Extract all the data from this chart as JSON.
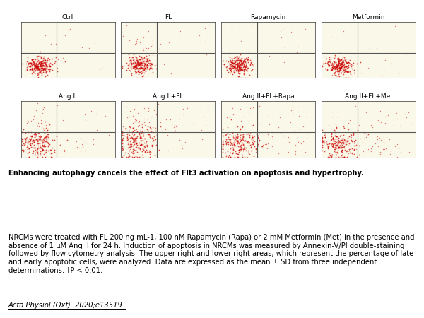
{
  "title_bold": "Enhancing autophagy cancels the effect of Flt3 activation on apoptosis and hypertrophy.",
  "body_text": "NRCMs were treated with FL 200 ng mL-1, 100 nM Rapamycin (Rapa) or 2 mM Metformin (Met) in the presence and absence of 1 μM Ang II for 24 h. Induction of apoptosis in NRCMs was measured by Annexin-V/PI double-staining followed by flow cytometry analysis. The upper right and lower right areas, which represent the percentage of late and early apoptotic cells, were analyzed. Data are expressed as the mean ± SD from three independent determinations. †P < 0.01.",
  "citation": "Acta Physiol (Oxf). 2020;e13519.",
  "panel_labels_row1": [
    "Ctrl",
    "FL",
    "Rapamycin",
    "Metformin"
  ],
  "panel_labels_row2": [
    "Ang II",
    "Ang II+FL",
    "Ang II+FL+Rapa",
    "Ang II+FL+Met"
  ],
  "bg_color": "#f5f0c8",
  "dot_color_main": "#cc0000",
  "panel_bg": "#faf8e8",
  "grid_color": "#555555",
  "figure_bg": "#ffffff",
  "label_fontsize": 6.5,
  "caption_fontsize": 7.2
}
